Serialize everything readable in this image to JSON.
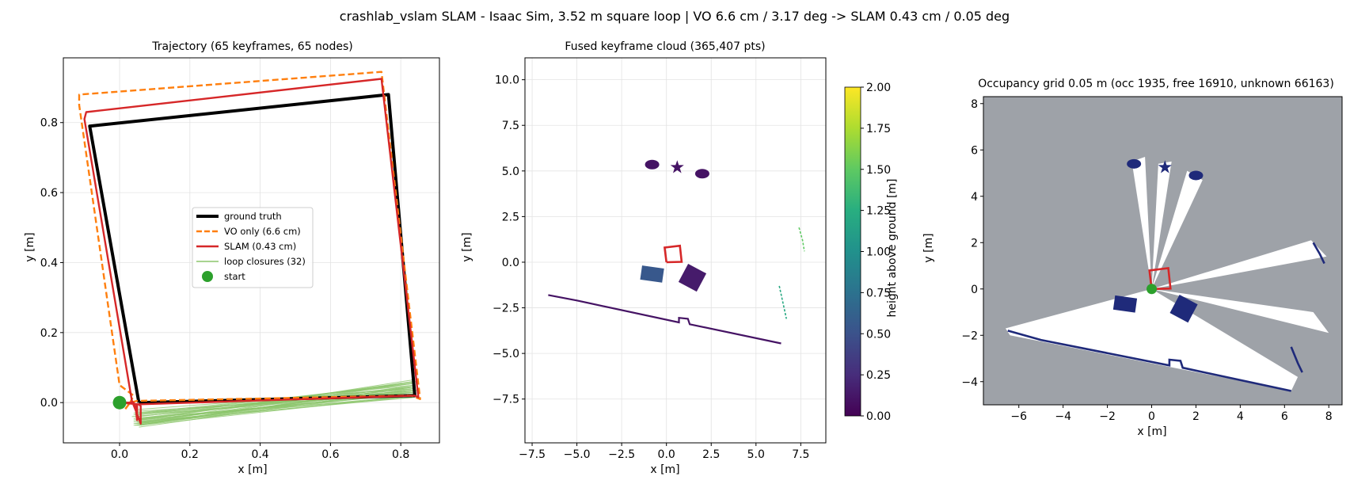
{
  "figure": {
    "suptitle": "crashlab_vslam SLAM - Isaac Sim, 3.52 m square loop  |  VO 6.6 cm / 3.17 deg  ->  SLAM 0.43 cm / 0.05 deg"
  },
  "colors": {
    "ground_truth": "#000000",
    "vo": "#ff7f0e",
    "slam": "#d62728",
    "loop": "#8cc56b",
    "start": "#2ca02c",
    "grid_occ": "#1f2a7a",
    "grid_free": "#ffffff",
    "grid_unknown": "#9ea2a8"
  },
  "chart_data": [
    {
      "type": "line",
      "title": "Trajectory  (65 keyframes, 65 nodes)",
      "xlabel": "x [m]",
      "ylabel": "y [m]",
      "xlim": [
        -0.16,
        0.91
      ],
      "ylim": [
        -0.115,
        0.985
      ],
      "xticks": [
        0.0,
        0.2,
        0.4,
        0.6,
        0.8
      ],
      "xtick_labels": [
        "0.0",
        "0.2",
        "0.4",
        "0.6",
        "0.8"
      ],
      "yticks": [
        0.0,
        0.2,
        0.4,
        0.6,
        0.8
      ],
      "ytick_labels": [
        "0.0",
        "0.2",
        "0.4",
        "0.6",
        "0.8"
      ],
      "grid": true,
      "legend_position": "center",
      "legend": [
        "ground truth",
        "VO only  (6.6 cm)",
        "SLAM  (0.43 cm)",
        "loop closures (32)",
        "start"
      ],
      "series": [
        {
          "name": "ground truth",
          "style": "solid-thick",
          "x": [
            0.055,
            0.84,
            0.765,
            -0.085,
            0.055
          ],
          "y": [
            0.0,
            0.02,
            0.88,
            0.79,
            0.0
          ]
        },
        {
          "name": "VO only  (6.6 cm)",
          "style": "dashed",
          "x": [
            0.0,
            0.015,
            0.03,
            0.05,
            0.83,
            0.855,
            0.745,
            -0.115,
            -0.115,
            0.0,
            0.04,
            0.03,
            0.0
          ],
          "y": [
            0.0,
            -0.02,
            0.0,
            0.005,
            0.02,
            0.01,
            0.945,
            0.88,
            0.85,
            0.05,
            0.02,
            0.0,
            0.0
          ]
        },
        {
          "name": "SLAM  (0.43 cm)",
          "style": "solid",
          "x": [
            0.0,
            0.04,
            0.045,
            0.05,
            0.05,
            0.84,
            0.85,
            0.745,
            -0.095,
            -0.1,
            0.035,
            0.045,
            0.06,
            0.06,
            0.055,
            0.0
          ],
          "y": [
            0.0,
            0.0,
            -0.01,
            -0.05,
            -0.005,
            0.02,
            0.015,
            0.925,
            0.83,
            0.81,
            0.005,
            -0.02,
            -0.06,
            -0.01,
            -0.005,
            0.0
          ]
        }
      ],
      "loop_closures": {
        "name": "loop closures (32)",
        "segments": [
          [
            0.04,
            -0.06,
            0.835,
            0.065
          ],
          [
            0.045,
            -0.06,
            0.835,
            0.055
          ],
          [
            0.05,
            -0.065,
            0.84,
            0.05
          ],
          [
            0.055,
            -0.07,
            0.84,
            0.04
          ],
          [
            0.04,
            -0.055,
            0.83,
            0.035
          ],
          [
            0.06,
            -0.065,
            0.835,
            0.06
          ],
          [
            0.045,
            -0.05,
            0.84,
            0.025
          ],
          [
            0.05,
            -0.045,
            0.83,
            0.045
          ],
          [
            0.035,
            -0.04,
            0.84,
            0.03
          ],
          [
            0.055,
            -0.06,
            0.845,
            0.02
          ],
          [
            0.06,
            -0.055,
            0.84,
            0.015
          ],
          [
            0.04,
            -0.035,
            0.835,
            0.045
          ],
          [
            0.05,
            -0.03,
            0.84,
            0.035
          ],
          [
            0.045,
            -0.025,
            0.835,
            0.025
          ],
          [
            0.055,
            -0.04,
            0.84,
            0.055
          ],
          [
            0.06,
            -0.05,
            0.84,
            0.03
          ],
          [
            0.05,
            -0.055,
            0.83,
            0.02
          ],
          [
            0.04,
            -0.045,
            0.835,
            0.015
          ],
          [
            0.045,
            -0.065,
            0.84,
            0.045
          ],
          [
            0.055,
            -0.05,
            0.845,
            0.06
          ],
          [
            0.05,
            -0.02,
            0.835,
            0.04
          ],
          [
            0.04,
            -0.03,
            0.84,
            0.05
          ],
          [
            0.06,
            -0.045,
            0.84,
            0.025
          ],
          [
            0.045,
            -0.035,
            0.83,
            0.03
          ],
          [
            0.05,
            -0.06,
            0.845,
            0.035
          ],
          [
            0.055,
            -0.065,
            0.84,
            0.02
          ],
          [
            0.04,
            -0.05,
            0.835,
            0.06
          ],
          [
            0.06,
            -0.06,
            0.84,
            0.045
          ],
          [
            0.045,
            -0.04,
            0.84,
            0.04
          ],
          [
            0.05,
            -0.035,
            0.835,
            0.055
          ],
          [
            0.055,
            -0.03,
            0.84,
            0.035
          ],
          [
            0.04,
            -0.065,
            0.84,
            0.03
          ]
        ]
      },
      "start": {
        "name": "start",
        "x": 0.0,
        "y": 0.0
      }
    },
    {
      "type": "scatter",
      "title": "Fused keyframe cloud  (365,407 pts)",
      "xlabel": "x [m]",
      "ylabel": "y [m]",
      "xlim": [
        -7.9,
        8.9
      ],
      "ylim": [
        -9.9,
        11.2
      ],
      "xticks": [
        -7.5,
        -5.0,
        -2.5,
        0.0,
        2.5,
        5.0,
        7.5
      ],
      "xtick_labels": [
        "−7.5",
        "−5.0",
        "−2.5",
        "0.0",
        "2.5",
        "5.0",
        "7.5"
      ],
      "yticks": [
        -7.5,
        -5.0,
        -2.5,
        0.0,
        2.5,
        5.0,
        7.5,
        10.0
      ],
      "ytick_labels": [
        "−7.5",
        "−5.0",
        "−2.5",
        "0.0",
        "2.5",
        "5.0",
        "7.5",
        "10.0"
      ],
      "grid": true,
      "colorbar": {
        "label": "height above ground [m]",
        "range": [
          0.0,
          2.0
        ],
        "ticks": [
          0.0,
          0.25,
          0.5,
          0.75,
          1.0,
          1.25,
          1.5,
          1.75,
          2.0
        ],
        "tick_labels": [
          "0.00",
          "0.25",
          "0.50",
          "0.75",
          "1.00",
          "1.25",
          "1.50",
          "1.75",
          "2.00"
        ],
        "colormap": "viridis"
      },
      "point_clusters": [
        {
          "shape": "blob",
          "x": -0.8,
          "y": 5.35,
          "height": 0.1
        },
        {
          "shape": "star",
          "x": 0.6,
          "y": 5.2,
          "height": 0.1
        },
        {
          "shape": "blob",
          "x": 2.0,
          "y": 4.85,
          "height": 0.1
        },
        {
          "shape": "box",
          "x": -0.8,
          "y": -0.65,
          "height": 0.55
        },
        {
          "shape": "box-rotated",
          "x": 1.45,
          "y": -0.85,
          "height": 0.15
        }
      ],
      "wall_segments": [
        {
          "x": [
            -6.6,
            -5.0,
            0.7,
            0.7,
            1.2,
            1.3,
            6.4
          ],
          "y": [
            -1.8,
            -2.1,
            -3.3,
            -3.05,
            -3.1,
            -3.4,
            -4.45
          ],
          "height": 0.1
        },
        {
          "x": [
            7.4,
            7.6,
            7.7
          ],
          "y": [
            1.9,
            1.2,
            0.6
          ],
          "height": 1.5
        },
        {
          "x": [
            6.3,
            6.5,
            6.7
          ],
          "y": [
            -1.3,
            -2.2,
            -3.1
          ],
          "height": 1.2
        }
      ],
      "trajectory": {
        "x": [
          0.0,
          0.85,
          0.75,
          -0.1,
          0.0
        ],
        "y": [
          0.0,
          0.02,
          0.9,
          0.8,
          0.0
        ]
      }
    },
    {
      "type": "heatmap",
      "title": "Occupancy grid 0.05 m  (occ 1935, free 16910, unknown 66163)",
      "xlabel": "x [m]",
      "ylabel": "y [m]",
      "xlim": [
        -7.6,
        8.6
      ],
      "ylim": [
        -5.0,
        8.3
      ],
      "xticks": [
        -6,
        -4,
        -2,
        0,
        2,
        4,
        6,
        8
      ],
      "xtick_labels": [
        "−6",
        "−4",
        "−2",
        "0",
        "2",
        "4",
        "6",
        "8"
      ],
      "yticks": [
        -4,
        -2,
        0,
        2,
        4,
        6,
        8
      ],
      "ytick_labels": [
        "−4",
        "−2",
        "0",
        "2",
        "4",
        "6",
        "8"
      ],
      "grid": false,
      "cell_size_m": 0.05,
      "counts": {
        "occupied": 1935,
        "free": 16910,
        "unknown": 66163
      },
      "free_regions": [
        [
          [
            0,
            0
          ],
          [
            -6.6,
            -1.7
          ],
          [
            -6.4,
            -2.0
          ],
          [
            6.3,
            -4.4
          ],
          [
            6.6,
            -3.8
          ],
          [
            0,
            0
          ]
        ],
        [
          [
            0,
            0
          ],
          [
            7.2,
            2.1
          ],
          [
            7.9,
            1.4
          ],
          [
            0,
            0
          ]
        ],
        [
          [
            0,
            0
          ],
          [
            7.3,
            -1.0
          ],
          [
            8.0,
            -1.9
          ],
          [
            0,
            0
          ]
        ],
        [
          [
            0,
            0
          ],
          [
            -0.9,
            5.5
          ],
          [
            -0.3,
            5.7
          ],
          [
            0,
            0
          ]
        ],
        [
          [
            0,
            0
          ],
          [
            0.3,
            5.4
          ],
          [
            0.9,
            5.5
          ],
          [
            0,
            0
          ]
        ],
        [
          [
            0,
            0
          ],
          [
            1.6,
            5.1
          ],
          [
            2.3,
            4.7
          ],
          [
            0,
            0
          ]
        ]
      ],
      "occupied_blobs": [
        {
          "shape": "blob",
          "x": -0.8,
          "y": 5.4
        },
        {
          "shape": "star",
          "x": 0.6,
          "y": 5.25
        },
        {
          "shape": "blob",
          "x": 2.0,
          "y": 4.9
        },
        {
          "shape": "box",
          "x": -1.2,
          "y": -0.65
        },
        {
          "shape": "box-rotated",
          "x": 1.45,
          "y": -0.85
        }
      ],
      "wall_segments": [
        {
          "x": [
            -6.5,
            -5.0,
            0.8,
            0.8,
            1.3,
            1.4,
            6.3
          ],
          "y": [
            -1.8,
            -2.2,
            -3.3,
            -3.05,
            -3.1,
            -3.4,
            -4.4
          ]
        },
        {
          "x": [
            7.3,
            7.6,
            7.8
          ],
          "y": [
            2.0,
            1.5,
            1.1
          ]
        },
        {
          "x": [
            6.3,
            6.6,
            6.8
          ],
          "y": [
            -2.5,
            -3.2,
            -3.6
          ]
        }
      ],
      "trajectory": {
        "x": [
          0.0,
          0.85,
          0.75,
          -0.1,
          0.0
        ],
        "y": [
          0.0,
          0.02,
          0.9,
          0.8,
          0.0
        ]
      },
      "start": {
        "x": 0.0,
        "y": 0.0
      }
    }
  ]
}
